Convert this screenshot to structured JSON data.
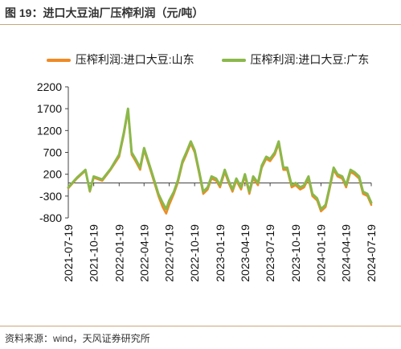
{
  "header": {
    "title": "图 19：进口大豆油厂压榨利润（元/吨）"
  },
  "footer": {
    "source": "资料来源：wind，天风证券研究所"
  },
  "chart_data": {
    "type": "line",
    "title": "图 19：进口大豆油厂压榨利润（元/吨）",
    "xlabel": "",
    "ylabel": "",
    "ylim": [
      -800,
      2200
    ],
    "yticks": [
      -800,
      -300,
      200,
      700,
      1200,
      1700,
      2200
    ],
    "xlim": [
      "2021-07-19",
      "2024-07-19"
    ],
    "xticks": [
      "2021-07-19",
      "2021-10-19",
      "2022-01-19",
      "2022-04-19",
      "2022-07-19",
      "2022-10-19",
      "2023-01-19",
      "2023-04-19",
      "2023-07-19",
      "2023-10-19",
      "2024-01-19",
      "2024-04-19",
      "2024-07-19"
    ],
    "grid": false,
    "legend_position": "top",
    "colors": {
      "shandong": "#f08a24",
      "guangdong": "#8ab84a"
    },
    "series": [
      {
        "name": "压榨利润:进口大豆:山东",
        "x": [
          "2021-07-19",
          "2021-08-19",
          "2021-09-19",
          "2021-10-05",
          "2021-10-19",
          "2021-11-19",
          "2021-12-19",
          "2022-01-19",
          "2022-02-05",
          "2022-02-20",
          "2022-03-05",
          "2022-03-19",
          "2022-04-05",
          "2022-04-19",
          "2022-05-19",
          "2022-06-10",
          "2022-06-25",
          "2022-07-08",
          "2022-07-19",
          "2022-08-05",
          "2022-08-19",
          "2022-09-05",
          "2022-09-19",
          "2022-10-05",
          "2022-10-19",
          "2022-11-05",
          "2022-11-19",
          "2022-12-05",
          "2022-12-19",
          "2023-01-05",
          "2023-01-19",
          "2023-02-05",
          "2023-02-19",
          "2023-03-05",
          "2023-03-19",
          "2023-04-05",
          "2023-04-19",
          "2023-05-05",
          "2023-05-19",
          "2023-06-05",
          "2023-06-19",
          "2023-07-05",
          "2023-07-19",
          "2023-08-05",
          "2023-08-19",
          "2023-09-05",
          "2023-09-19",
          "2023-10-05",
          "2023-10-19",
          "2023-11-05",
          "2023-11-19",
          "2023-12-05",
          "2023-12-19",
          "2024-01-05",
          "2024-01-19",
          "2024-02-05",
          "2024-02-19",
          "2024-03-05",
          "2024-03-19",
          "2024-04-05",
          "2024-04-19",
          "2024-05-05",
          "2024-05-19",
          "2024-06-05",
          "2024-06-19",
          "2024-07-05",
          "2024-07-19"
        ],
        "values": [
          -120,
          100,
          280,
          -200,
          120,
          50,
          300,
          600,
          1100,
          1650,
          650,
          500,
          300,
          750,
          150,
          -300,
          -550,
          -700,
          -500,
          -250,
          0,
          450,
          650,
          900,
          700,
          200,
          -250,
          -150,
          100,
          50,
          -100,
          250,
          0,
          -200,
          50,
          -150,
          150,
          -250,
          100,
          -50,
          350,
          550,
          500,
          650,
          900,
          300,
          300,
          -100,
          -50,
          -150,
          -100,
          100,
          -300,
          -400,
          -650,
          -550,
          -150,
          300,
          150,
          100,
          -100,
          250,
          200,
          100,
          -250,
          -300,
          -500
        ]
      },
      {
        "name": "压榨利润:进口大豆:广东",
        "x": [
          "2021-07-19",
          "2021-08-19",
          "2021-09-19",
          "2021-10-05",
          "2021-10-19",
          "2021-11-19",
          "2021-12-19",
          "2022-01-19",
          "2022-02-05",
          "2022-02-20",
          "2022-03-05",
          "2022-03-19",
          "2022-04-05",
          "2022-04-19",
          "2022-05-19",
          "2022-06-10",
          "2022-06-25",
          "2022-07-08",
          "2022-07-19",
          "2022-08-05",
          "2022-08-19",
          "2022-09-05",
          "2022-09-19",
          "2022-10-05",
          "2022-10-19",
          "2022-11-05",
          "2022-11-19",
          "2022-12-05",
          "2022-12-19",
          "2023-01-05",
          "2023-01-19",
          "2023-02-05",
          "2023-02-19",
          "2023-03-05",
          "2023-03-19",
          "2023-04-05",
          "2023-04-19",
          "2023-05-05",
          "2023-05-19",
          "2023-06-05",
          "2023-06-19",
          "2023-07-05",
          "2023-07-19",
          "2023-08-05",
          "2023-08-19",
          "2023-09-05",
          "2023-09-19",
          "2023-10-05",
          "2023-10-19",
          "2023-11-05",
          "2023-11-19",
          "2023-12-05",
          "2023-12-19",
          "2024-01-05",
          "2024-01-19",
          "2024-02-05",
          "2024-02-19",
          "2024-03-05",
          "2024-03-19",
          "2024-04-05",
          "2024-04-19",
          "2024-05-05",
          "2024-05-19",
          "2024-06-05",
          "2024-06-19",
          "2024-07-05",
          "2024-07-19"
        ],
        "values": [
          -100,
          120,
          300,
          -180,
          150,
          80,
          320,
          650,
          1150,
          1700,
          700,
          550,
          350,
          800,
          200,
          -250,
          -450,
          -600,
          -400,
          -200,
          50,
          500,
          700,
          950,
          750,
          250,
          -200,
          -100,
          150,
          100,
          -50,
          300,
          50,
          -150,
          100,
          -100,
          200,
          -200,
          150,
          0,
          400,
          600,
          550,
          700,
          950,
          350,
          350,
          -50,
          0,
          -100,
          -50,
          150,
          -250,
          -350,
          -600,
          -500,
          -100,
          350,
          200,
          150,
          -50,
          300,
          250,
          150,
          -200,
          -250,
          -450
        ]
      }
    ]
  }
}
